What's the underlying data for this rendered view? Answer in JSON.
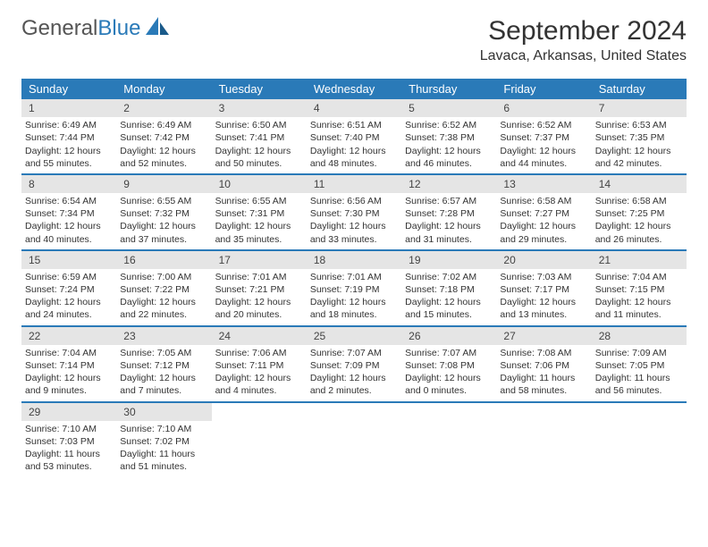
{
  "logo": {
    "text1": "General",
    "text2": "Blue"
  },
  "title": "September 2024",
  "location": "Lavaca, Arkansas, United States",
  "colors": {
    "header_bg": "#2a7ab8",
    "header_text": "#ffffff",
    "daynum_bg": "#e5e5e5",
    "text": "#333333",
    "border": "#2a7ab8"
  },
  "day_names": [
    "Sunday",
    "Monday",
    "Tuesday",
    "Wednesday",
    "Thursday",
    "Friday",
    "Saturday"
  ],
  "weeks": [
    [
      {
        "num": "1",
        "sunrise": "Sunrise: 6:49 AM",
        "sunset": "Sunset: 7:44 PM",
        "daylight": "Daylight: 12 hours and 55 minutes."
      },
      {
        "num": "2",
        "sunrise": "Sunrise: 6:49 AM",
        "sunset": "Sunset: 7:42 PM",
        "daylight": "Daylight: 12 hours and 52 minutes."
      },
      {
        "num": "3",
        "sunrise": "Sunrise: 6:50 AM",
        "sunset": "Sunset: 7:41 PM",
        "daylight": "Daylight: 12 hours and 50 minutes."
      },
      {
        "num": "4",
        "sunrise": "Sunrise: 6:51 AM",
        "sunset": "Sunset: 7:40 PM",
        "daylight": "Daylight: 12 hours and 48 minutes."
      },
      {
        "num": "5",
        "sunrise": "Sunrise: 6:52 AM",
        "sunset": "Sunset: 7:38 PM",
        "daylight": "Daylight: 12 hours and 46 minutes."
      },
      {
        "num": "6",
        "sunrise": "Sunrise: 6:52 AM",
        "sunset": "Sunset: 7:37 PM",
        "daylight": "Daylight: 12 hours and 44 minutes."
      },
      {
        "num": "7",
        "sunrise": "Sunrise: 6:53 AM",
        "sunset": "Sunset: 7:35 PM",
        "daylight": "Daylight: 12 hours and 42 minutes."
      }
    ],
    [
      {
        "num": "8",
        "sunrise": "Sunrise: 6:54 AM",
        "sunset": "Sunset: 7:34 PM",
        "daylight": "Daylight: 12 hours and 40 minutes."
      },
      {
        "num": "9",
        "sunrise": "Sunrise: 6:55 AM",
        "sunset": "Sunset: 7:32 PM",
        "daylight": "Daylight: 12 hours and 37 minutes."
      },
      {
        "num": "10",
        "sunrise": "Sunrise: 6:55 AM",
        "sunset": "Sunset: 7:31 PM",
        "daylight": "Daylight: 12 hours and 35 minutes."
      },
      {
        "num": "11",
        "sunrise": "Sunrise: 6:56 AM",
        "sunset": "Sunset: 7:30 PM",
        "daylight": "Daylight: 12 hours and 33 minutes."
      },
      {
        "num": "12",
        "sunrise": "Sunrise: 6:57 AM",
        "sunset": "Sunset: 7:28 PM",
        "daylight": "Daylight: 12 hours and 31 minutes."
      },
      {
        "num": "13",
        "sunrise": "Sunrise: 6:58 AM",
        "sunset": "Sunset: 7:27 PM",
        "daylight": "Daylight: 12 hours and 29 minutes."
      },
      {
        "num": "14",
        "sunrise": "Sunrise: 6:58 AM",
        "sunset": "Sunset: 7:25 PM",
        "daylight": "Daylight: 12 hours and 26 minutes."
      }
    ],
    [
      {
        "num": "15",
        "sunrise": "Sunrise: 6:59 AM",
        "sunset": "Sunset: 7:24 PM",
        "daylight": "Daylight: 12 hours and 24 minutes."
      },
      {
        "num": "16",
        "sunrise": "Sunrise: 7:00 AM",
        "sunset": "Sunset: 7:22 PM",
        "daylight": "Daylight: 12 hours and 22 minutes."
      },
      {
        "num": "17",
        "sunrise": "Sunrise: 7:01 AM",
        "sunset": "Sunset: 7:21 PM",
        "daylight": "Daylight: 12 hours and 20 minutes."
      },
      {
        "num": "18",
        "sunrise": "Sunrise: 7:01 AM",
        "sunset": "Sunset: 7:19 PM",
        "daylight": "Daylight: 12 hours and 18 minutes."
      },
      {
        "num": "19",
        "sunrise": "Sunrise: 7:02 AM",
        "sunset": "Sunset: 7:18 PM",
        "daylight": "Daylight: 12 hours and 15 minutes."
      },
      {
        "num": "20",
        "sunrise": "Sunrise: 7:03 AM",
        "sunset": "Sunset: 7:17 PM",
        "daylight": "Daylight: 12 hours and 13 minutes."
      },
      {
        "num": "21",
        "sunrise": "Sunrise: 7:04 AM",
        "sunset": "Sunset: 7:15 PM",
        "daylight": "Daylight: 12 hours and 11 minutes."
      }
    ],
    [
      {
        "num": "22",
        "sunrise": "Sunrise: 7:04 AM",
        "sunset": "Sunset: 7:14 PM",
        "daylight": "Daylight: 12 hours and 9 minutes."
      },
      {
        "num": "23",
        "sunrise": "Sunrise: 7:05 AM",
        "sunset": "Sunset: 7:12 PM",
        "daylight": "Daylight: 12 hours and 7 minutes."
      },
      {
        "num": "24",
        "sunrise": "Sunrise: 7:06 AM",
        "sunset": "Sunset: 7:11 PM",
        "daylight": "Daylight: 12 hours and 4 minutes."
      },
      {
        "num": "25",
        "sunrise": "Sunrise: 7:07 AM",
        "sunset": "Sunset: 7:09 PM",
        "daylight": "Daylight: 12 hours and 2 minutes."
      },
      {
        "num": "26",
        "sunrise": "Sunrise: 7:07 AM",
        "sunset": "Sunset: 7:08 PM",
        "daylight": "Daylight: 12 hours and 0 minutes."
      },
      {
        "num": "27",
        "sunrise": "Sunrise: 7:08 AM",
        "sunset": "Sunset: 7:06 PM",
        "daylight": "Daylight: 11 hours and 58 minutes."
      },
      {
        "num": "28",
        "sunrise": "Sunrise: 7:09 AM",
        "sunset": "Sunset: 7:05 PM",
        "daylight": "Daylight: 11 hours and 56 minutes."
      }
    ],
    [
      {
        "num": "29",
        "sunrise": "Sunrise: 7:10 AM",
        "sunset": "Sunset: 7:03 PM",
        "daylight": "Daylight: 11 hours and 53 minutes."
      },
      {
        "num": "30",
        "sunrise": "Sunrise: 7:10 AM",
        "sunset": "Sunset: 7:02 PM",
        "daylight": "Daylight: 11 hours and 51 minutes."
      },
      null,
      null,
      null,
      null,
      null
    ]
  ]
}
